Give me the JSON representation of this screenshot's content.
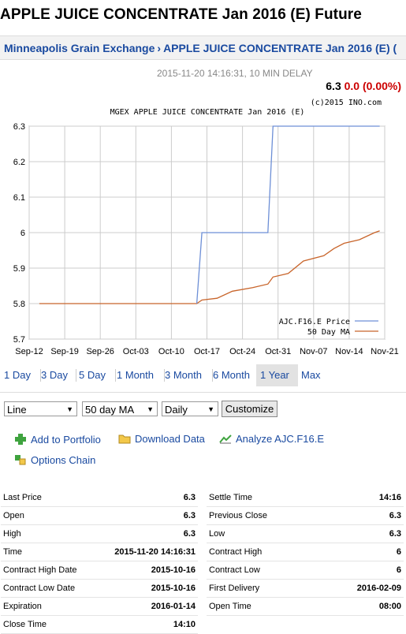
{
  "page": {
    "title": "APPLE JUICE CONCENTRATE Jan 2016 (E) Future",
    "breadcrumb": [
      "Minneapolis Grain Exchange",
      "APPLE JUICE CONCENTRATE Jan 2016 (E)",
      "("
    ],
    "timestamp": "2015-11-20 14:16:31, 10 MIN DELAY",
    "price": "6.3",
    "change": "0.0 (0.00%)"
  },
  "chart_data": {
    "type": "line",
    "title": "MGEX APPLE JUICE CONCENTRATE Jan 2016 (E)",
    "copyright": "(c)2015 INO.com",
    "x_ticks": [
      "Sep-12",
      "Sep-19",
      "Sep-26",
      "Oct-03",
      "Oct-10",
      "Oct-17",
      "Oct-24",
      "Oct-31",
      "Nov-07",
      "Nov-14",
      "Nov-21"
    ],
    "y_ticks": [
      "6.3",
      "6.2",
      "6.1",
      "6",
      "5.9",
      "5.8",
      "5.7"
    ],
    "ylim": [
      5.7,
      6.3
    ],
    "xlim": [
      "2015-09-12",
      "2015-11-21"
    ],
    "grid": true,
    "legend": "bottom-right",
    "colors": {
      "price": "#6d8fd6",
      "ma": "#c8642a",
      "grid": "#cccccc"
    },
    "series": [
      {
        "name": "AJC.F16.E Price",
        "points": [
          [
            "2015-10-15",
            5.8
          ],
          [
            "2015-10-16",
            6.0
          ],
          [
            "2015-10-29",
            6.0
          ],
          [
            "2015-10-30",
            6.3
          ],
          [
            "2015-11-20",
            6.3
          ]
        ]
      },
      {
        "name": "50 Day MA",
        "points": [
          [
            "2015-09-14",
            5.8
          ],
          [
            "2015-10-15",
            5.8
          ],
          [
            "2015-10-16",
            5.81
          ],
          [
            "2015-10-19",
            5.815
          ],
          [
            "2015-10-22",
            5.835
          ],
          [
            "2015-10-26",
            5.845
          ],
          [
            "2015-10-29",
            5.855
          ],
          [
            "2015-10-30",
            5.875
          ],
          [
            "2015-11-02",
            5.885
          ],
          [
            "2015-11-05",
            5.92
          ],
          [
            "2015-11-09",
            5.935
          ],
          [
            "2015-11-11",
            5.955
          ],
          [
            "2015-11-13",
            5.97
          ],
          [
            "2015-11-16",
            5.98
          ],
          [
            "2015-11-19",
            6.0
          ],
          [
            "2015-11-20",
            6.005
          ]
        ]
      }
    ]
  },
  "ranges": [
    "1 Day",
    "3 Day",
    "5 Day",
    "1 Month",
    "3 Month",
    "6 Month",
    "1 Year",
    "Max"
  ],
  "active_range": "1 Year",
  "controls": {
    "chart_type": "Line",
    "indicator": "50 day MA",
    "interval": "Daily",
    "customize": "Customize"
  },
  "tools": {
    "add_portfolio": "Add to Portfolio",
    "download": "Download Data",
    "analyze": "Analyze AJC.F16.E",
    "options": "Options Chain"
  },
  "stats_left": [
    {
      "label": "Last Price",
      "value": "6.3"
    },
    {
      "label": "Open",
      "value": "6.3"
    },
    {
      "label": "High",
      "value": "6.3"
    },
    {
      "label": "Time",
      "value": "2015-11-20 14:16:31"
    },
    {
      "label": "Contract High Date",
      "value": "2015-10-16"
    },
    {
      "label": "Contract Low Date",
      "value": "2015-10-16"
    },
    {
      "label": "Expiration",
      "value": "2016-01-14"
    },
    {
      "label": "Close Time",
      "value": "14:10"
    }
  ],
  "stats_right": [
    {
      "label": "Settle Time",
      "value": "14:16"
    },
    {
      "label": "Previous Close",
      "value": "6.3"
    },
    {
      "label": "Low",
      "value": "6.3"
    },
    {
      "label": "Contract High",
      "value": "6"
    },
    {
      "label": "Contract Low",
      "value": "6"
    },
    {
      "label": "First Delivery",
      "value": "2016-02-09"
    },
    {
      "label": "Open Time",
      "value": "08:00"
    }
  ]
}
